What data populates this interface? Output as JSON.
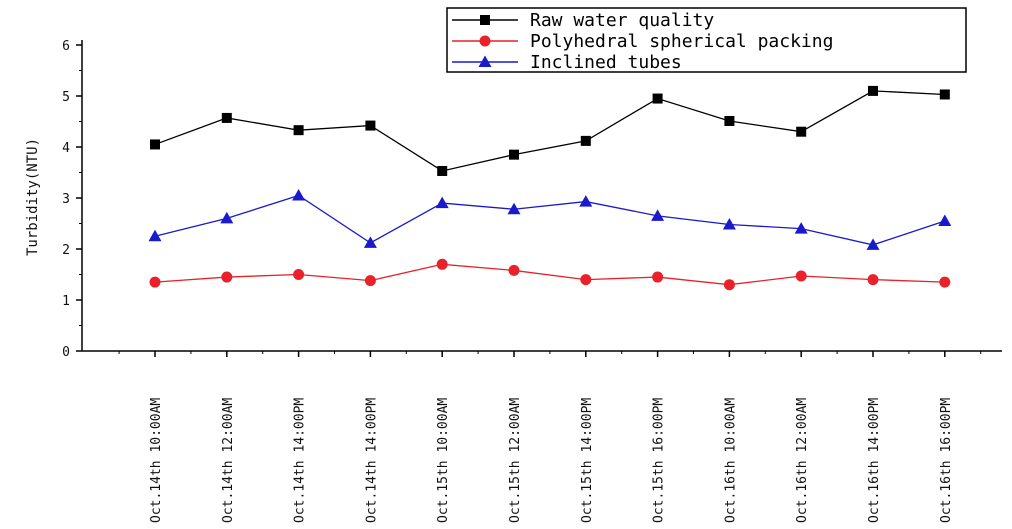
{
  "chart_data": {
    "type": "line",
    "ylabel": "Turbidity(NTU)",
    "ylim": [
      0,
      6
    ],
    "yticks": [
      0,
      1,
      2,
      3,
      4,
      5,
      6
    ],
    "grid": false,
    "legend_position": "top-right",
    "categories": [
      "Oct.14th 10:00AM",
      "Oct.14th 12:00AM",
      "Oct.14th 14:00PM",
      "Oct.14th 14:00PM",
      "Oct.15th 10:00AM",
      "Oct.15th 12:00AM",
      "Oct.15th 14:00PM",
      "Oct.15th 16:00PM",
      "Oct.16th 10:00AM",
      "Oct.16th 12:00AM",
      "Oct.16th 14:00PM",
      "Oct.16th 16:00PM"
    ],
    "series": [
      {
        "name": "Raw water quality",
        "color": "#000000",
        "marker": "square",
        "values": [
          4.05,
          4.57,
          4.33,
          4.42,
          3.53,
          3.85,
          4.12,
          4.95,
          4.51,
          4.3,
          5.1,
          5.03
        ]
      },
      {
        "name": "Polyhedral spherical packing",
        "color": "#e8212a",
        "marker": "circle",
        "values": [
          1.35,
          1.45,
          1.5,
          1.38,
          1.7,
          1.58,
          1.4,
          1.45,
          1.3,
          1.47,
          1.4,
          1.35
        ]
      },
      {
        "name": "Inclined tubes",
        "color": "#1a1acc",
        "marker": "triangle",
        "values": [
          2.25,
          2.6,
          3.05,
          2.12,
          2.9,
          2.78,
          2.93,
          2.65,
          2.48,
          2.4,
          2.08,
          2.55
        ]
      }
    ]
  }
}
